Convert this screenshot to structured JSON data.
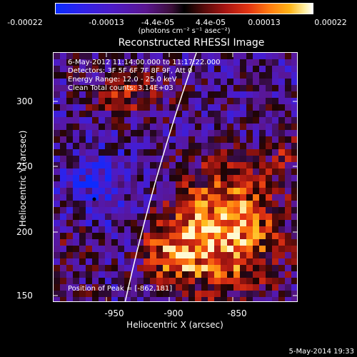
{
  "colorbar": {
    "ticks": [
      "-0.00022",
      "-0.00013",
      "-4.4e-05",
      "4.4e-05",
      "0.00013",
      "0.00022"
    ],
    "units": "(photons cm⁻² s⁻¹ asec⁻²)"
  },
  "plot": {
    "title": "Reconstructed RHESSI Image",
    "info": [
      "6-May-2012 11:14:00.000 to 11:17:22.000",
      "Detectors: 3F 5F 6F 7F 8F 9F, Att 0",
      "Energy Range: 12.0 - 25.0 keV",
      "Clean    Total counts: 3.14E+03"
    ],
    "peak": "Position of Peak = [-862,181]",
    "xlabel": "Heliocentric X (arcsec)",
    "ylabel": "Heliocentric Y (arcsec)",
    "xticks": [
      "-950",
      "-900",
      "-850"
    ],
    "yticks": [
      "300",
      "250",
      "200",
      "150"
    ]
  },
  "timestamp": "5-May-2014 19:33"
}
